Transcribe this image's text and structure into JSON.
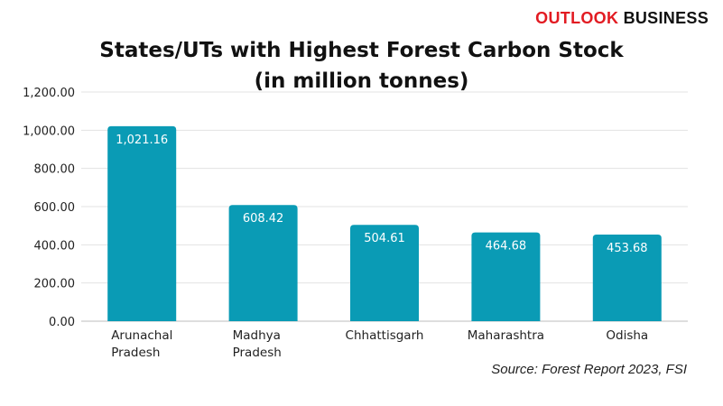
{
  "brand": {
    "part1": "OUTLOOK",
    "part2": "BUSINESS",
    "color_accent": "#e21b22"
  },
  "chart_data": {
    "type": "bar",
    "title_line1": "States/UTs with Highest Forest Carbon Stock",
    "title_line2": "(in million tonnes)",
    "categories": [
      [
        "Arunachal",
        "Pradesh"
      ],
      [
        "Madhya",
        "Pradesh"
      ],
      [
        "Chhattisgarh"
      ],
      [
        "Maharashtra"
      ],
      [
        "Odisha"
      ]
    ],
    "values": [
      1021.16,
      608.42,
      504.61,
      464.68,
      453.68
    ],
    "value_labels": [
      "1,021.16",
      "608.42",
      "504.61",
      "464.68",
      "453.68"
    ],
    "yticks": [
      0,
      200,
      400,
      600,
      800,
      1000,
      1200
    ],
    "ytick_labels": [
      "0.00",
      "200.00",
      "400.00",
      "600.00",
      "800.00",
      "1,000.00",
      "1,200.00"
    ],
    "ylim": [
      0,
      1200
    ],
    "grid": true,
    "bar_color": "#0a9bb5",
    "source": "Source: Forest Report 2023, FSI"
  }
}
